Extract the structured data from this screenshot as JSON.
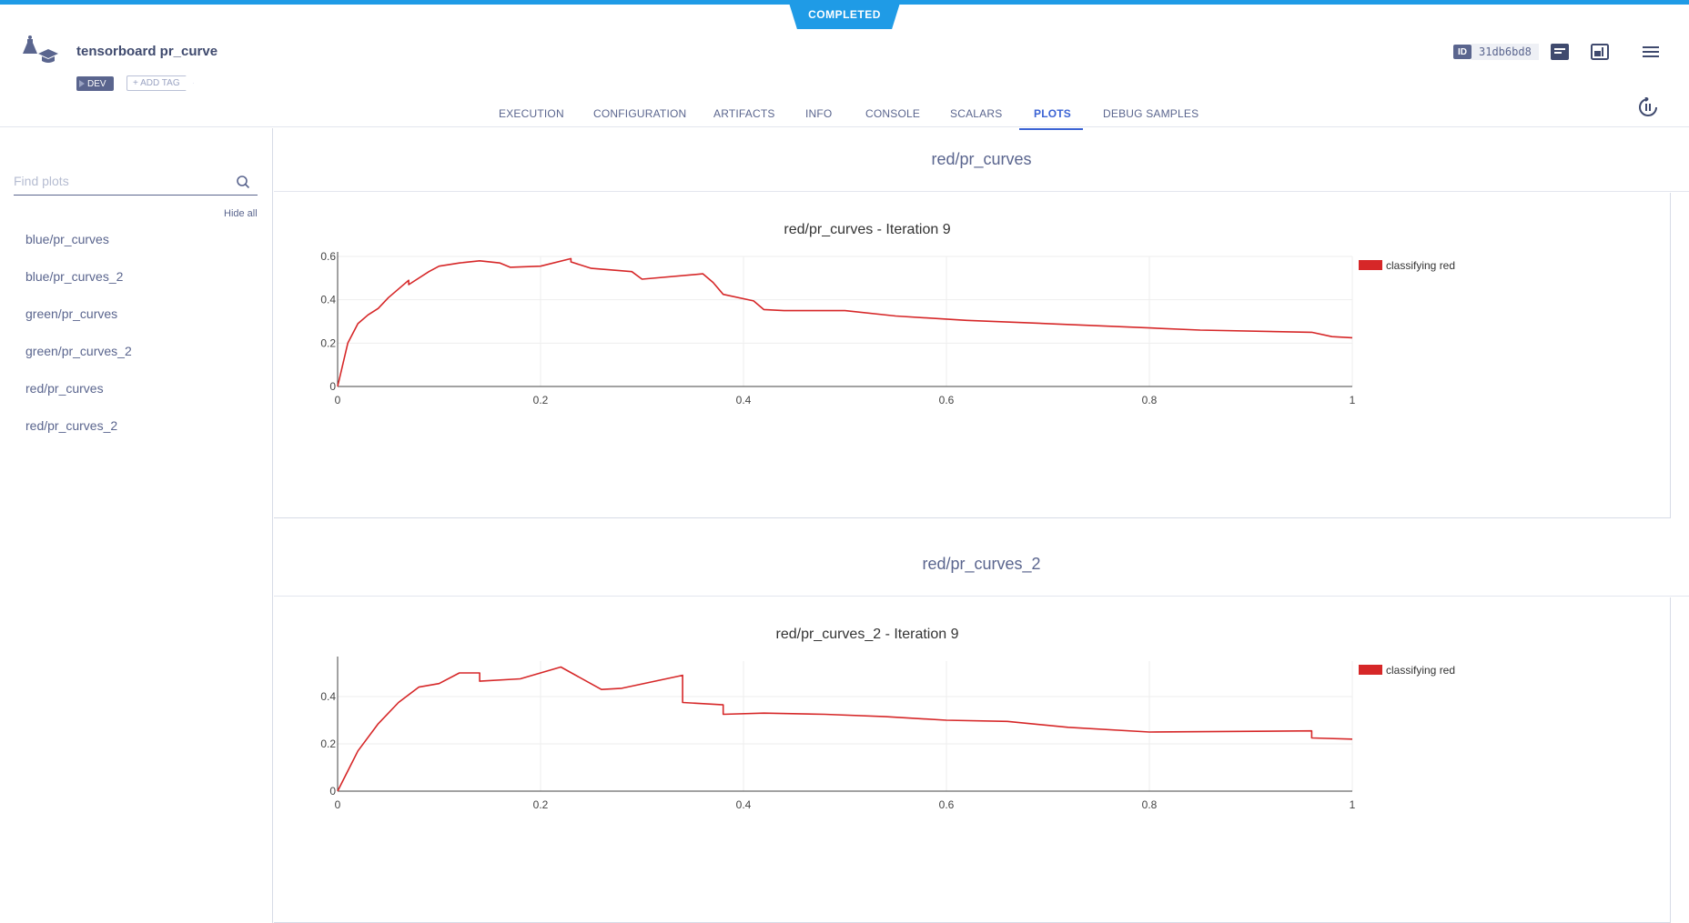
{
  "status": "COMPLETED",
  "task": {
    "title": "tensorboard pr_curve",
    "tag": "DEV",
    "add_tag_label": "+ ADD TAG",
    "id_label": "ID",
    "id_value": "31db6bd8"
  },
  "tabs": [
    {
      "label": "EXECUTION"
    },
    {
      "label": "CONFIGURATION"
    },
    {
      "label": "ARTIFACTS"
    },
    {
      "label": "INFO"
    },
    {
      "label": "CONSOLE"
    },
    {
      "label": "SCALARS"
    },
    {
      "label": "PLOTS",
      "active": true
    },
    {
      "label": "DEBUG SAMPLES"
    }
  ],
  "sidebar": {
    "search_placeholder": "Find plots",
    "hide_all_label": "Hide all",
    "items": [
      {
        "label": "blue/pr_curves"
      },
      {
        "label": "blue/pr_curves_2"
      },
      {
        "label": "green/pr_curves"
      },
      {
        "label": "green/pr_curves_2"
      },
      {
        "label": "red/pr_curves"
      },
      {
        "label": "red/pr_curves_2"
      }
    ]
  },
  "sections": [
    {
      "title": "red/pr_curves"
    },
    {
      "title": "red/pr_curves_2"
    }
  ],
  "colors": {
    "accent": "#1f9be6",
    "series": "#d62728",
    "text": "#5a658e",
    "active_tab": "#3b63d4"
  },
  "chart_data": [
    {
      "type": "line",
      "title": "red/pr_curves - Iteration 9",
      "xlim": [
        0,
        1
      ],
      "ylim": [
        0,
        0.6
      ],
      "xticks": [
        "0",
        "0.2",
        "0.4",
        "0.6",
        "0.8",
        "1"
      ],
      "yticks": [
        "0",
        "0.2",
        "0.4",
        "0.6"
      ],
      "legend": "top-right",
      "grid": true,
      "series": [
        {
          "name": "classifying red",
          "x": [
            0,
            0.01,
            0.02,
            0.03,
            0.04,
            0.05,
            0.06,
            0.07,
            0.07,
            0.09,
            0.1,
            0.12,
            0.14,
            0.16,
            0.17,
            0.2,
            0.23,
            0.23,
            0.25,
            0.29,
            0.3,
            0.36,
            0.37,
            0.38,
            0.41,
            0.42,
            0.44,
            0.5,
            0.55,
            0.62,
            0.7,
            0.8,
            0.85,
            0.96,
            0.98,
            1
          ],
          "y": [
            0,
            0.2,
            0.29,
            0.33,
            0.36,
            0.41,
            0.45,
            0.49,
            0.47,
            0.53,
            0.555,
            0.57,
            0.58,
            0.57,
            0.55,
            0.555,
            0.59,
            0.575,
            0.545,
            0.53,
            0.495,
            0.52,
            0.48,
            0.425,
            0.395,
            0.355,
            0.35,
            0.35,
            0.325,
            0.305,
            0.29,
            0.27,
            0.26,
            0.25,
            0.23,
            0.225
          ]
        }
      ]
    },
    {
      "type": "line",
      "title": "red/pr_curves_2 - Iteration 9",
      "xlim": [
        0,
        1
      ],
      "ylim": [
        0,
        0.55
      ],
      "xticks": [
        "0",
        "0.2",
        "0.4",
        "0.6",
        "0.8",
        "1"
      ],
      "yticks": [
        "0",
        "0.2",
        "0.4"
      ],
      "legend": "top-right",
      "grid": true,
      "series": [
        {
          "name": "classifying red",
          "x": [
            0,
            0.02,
            0.04,
            0.06,
            0.08,
            0.1,
            0.12,
            0.14,
            0.14,
            0.18,
            0.22,
            0.26,
            0.28,
            0.34,
            0.34,
            0.38,
            0.38,
            0.42,
            0.48,
            0.54,
            0.6,
            0.66,
            0.72,
            0.8,
            0.96,
            0.96,
            1
          ],
          "y": [
            0,
            0.17,
            0.285,
            0.375,
            0.44,
            0.455,
            0.5,
            0.5,
            0.465,
            0.475,
            0.525,
            0.43,
            0.435,
            0.49,
            0.375,
            0.365,
            0.325,
            0.33,
            0.325,
            0.315,
            0.3,
            0.295,
            0.27,
            0.25,
            0.255,
            0.225,
            0.22
          ]
        }
      ]
    }
  ]
}
